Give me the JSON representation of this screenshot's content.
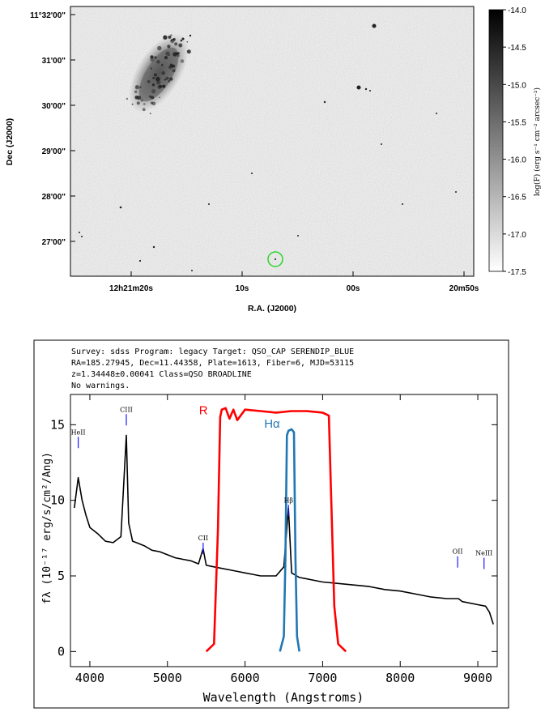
{
  "image_panel": {
    "dec_axis_label": "Dec (J2000)",
    "ra_axis_label": "R.A. (J2000)",
    "dec_ticks": [
      "11°32'00\"",
      "31'00\"",
      "30'00\"",
      "29'00\"",
      "28'00\"",
      "27'00\""
    ],
    "ra_ticks": [
      "12h21m20s",
      "10s",
      "00s",
      "20m50s"
    ],
    "colorbar_ticks": [
      "-14.0",
      "-14.5",
      "-15.0",
      "-15.5",
      "-16.0",
      "-16.5",
      "-17.0",
      "-17.5"
    ],
    "colorbar_label": "log(F) (erg s⁻¹ cm⁻² arcsec⁻²)",
    "colormap": "gray_r",
    "marker_color": "#2bd62b"
  },
  "spectrum_header": {
    "line1": "Survey: sdss Program: legacy Target: QSO_CAP SERENDIP_BLUE",
    "line2": "RA=185.27945, Dec=11.44358, Plate=1613, Fiber=6, MJD=53115",
    "line3": "z=1.34448±0.00041 Class=QSO BROADLINE",
    "line4": "No warnings."
  },
  "chart_data": {
    "type": "line",
    "xlabel": "Wavelength (Angstroms)",
    "ylabel": "fλ (10⁻¹⁷ erg/s/cm²/Ang)",
    "xlim": [
      3750,
      9250
    ],
    "ylim": [
      -1,
      17
    ],
    "xticks": [
      4000,
      5000,
      6000,
      7000,
      8000,
      9000
    ],
    "yticks": [
      0,
      5,
      10,
      15
    ],
    "grid": false,
    "series": [
      {
        "color": "#000000",
        "x": [
          3800,
          3850,
          3900,
          3950,
          4000,
          4100,
          4200,
          4300,
          4400,
          4470,
          4500,
          4550,
          4600,
          4700,
          4800,
          4900,
          5000,
          5100,
          5200,
          5300,
          5400,
          5460,
          5500,
          5600,
          5700,
          5800,
          5900,
          6000,
          6100,
          6200,
          6300,
          6400,
          6500,
          6560,
          6600,
          6700,
          6800,
          6900,
          7000,
          7200,
          7400,
          7600,
          7800,
          8000,
          8200,
          8400,
          8600,
          8750,
          8800,
          9000,
          9100,
          9150,
          9200
        ],
        "y": [
          9.5,
          11.5,
          10.0,
          9.0,
          8.2,
          7.8,
          7.3,
          7.2,
          7.6,
          14.3,
          8.5,
          7.3,
          7.2,
          7.0,
          6.7,
          6.6,
          6.4,
          6.2,
          6.1,
          6.0,
          5.8,
          6.8,
          5.7,
          5.6,
          5.5,
          5.4,
          5.3,
          5.2,
          5.1,
          5.0,
          5.0,
          5.0,
          5.6,
          9.5,
          5.2,
          4.9,
          4.8,
          4.7,
          4.6,
          4.5,
          4.4,
          4.3,
          4.1,
          4.0,
          3.8,
          3.6,
          3.5,
          3.5,
          3.3,
          3.1,
          3.0,
          2.6,
          1.8
        ]
      },
      {
        "name": "R",
        "color": "#ff0000",
        "x": [
          5500,
          5600,
          5650,
          5680,
          5700,
          5750,
          5800,
          5850,
          5900,
          6000,
          6200,
          6400,
          6600,
          6800,
          7000,
          7080,
          7100,
          7150,
          7200,
          7300
        ],
        "y": [
          0,
          0.5,
          8,
          15.5,
          16.0,
          16.1,
          15.4,
          16.0,
          15.3,
          16.0,
          15.9,
          15.8,
          15.9,
          15.9,
          15.8,
          15.6,
          12,
          3,
          0.5,
          0
        ]
      },
      {
        "name": "Hα",
        "color": "#1f77b4",
        "x": [
          6450,
          6500,
          6520,
          6540,
          6560,
          6600,
          6630,
          6650,
          6670,
          6700
        ],
        "y": [
          0,
          1,
          6,
          14.3,
          14.6,
          14.7,
          14.5,
          6,
          1,
          0
        ]
      }
    ],
    "line_ids": [
      {
        "label": "HeII",
        "x": 3850,
        "y": 14.2
      },
      {
        "label": "CIII",
        "x": 4470,
        "y": 15.7
      },
      {
        "label": "CII",
        "x": 5460,
        "y": 7.2
      },
      {
        "label": "Hβ",
        "x": 6560,
        "y": 9.7
      },
      {
        "label": "OII",
        "x": 8740,
        "y": 6.3
      },
      {
        "label": "NeIII",
        "x": 9080,
        "y": 6.2
      }
    ],
    "filter_labels": [
      {
        "label": "R",
        "x": 5520,
        "y": 15.7,
        "color": "#ff0000"
      },
      {
        "label": "Hα",
        "x": 6450,
        "y": 14.8,
        "color": "#1f77b4"
      }
    ]
  }
}
